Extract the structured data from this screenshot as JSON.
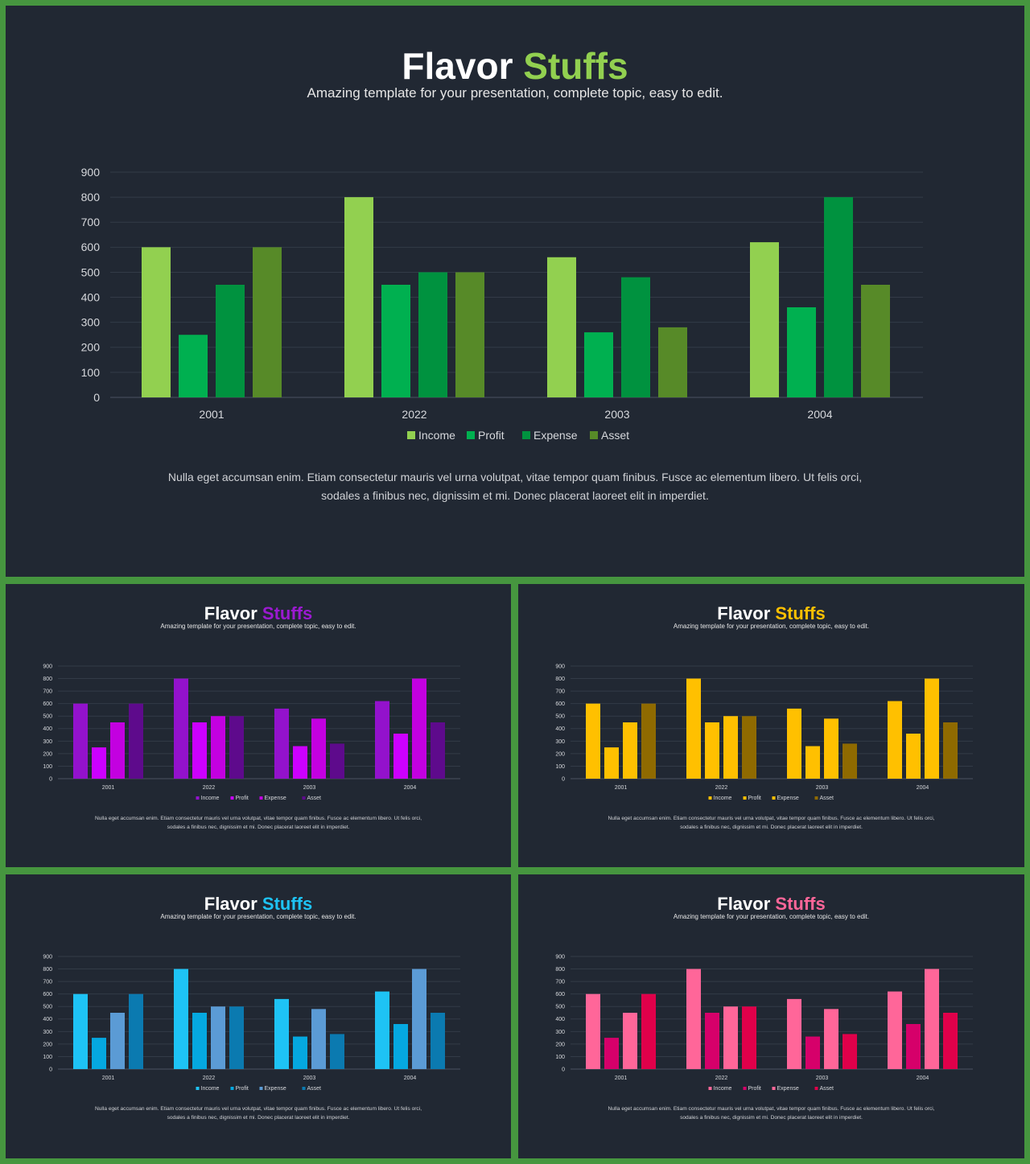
{
  "slides": [
    {
      "id": "main",
      "title_part1": "Flavor",
      "title_part2": "Stuffs",
      "subtitle": "Amazing template for your presentation, complete topic, easy to edit.",
      "body": "Nulla eget accumsan enim. Etiam consectetur mauris vel urna volutpat, vitae tempor quam finibus. Fusce ac elementum libero. Ut felis orci, sodales a finibus nec, dignissim et mi. Donec placerat laoreet elit in imperdiet.",
      "accent": "#92d050",
      "series_colors": [
        "#92d050",
        "#00b050",
        "#00923f",
        "#578a28"
      ]
    },
    {
      "id": "purple",
      "title_part1": "Flavor",
      "title_part2": "Stuffs",
      "subtitle": "Amazing template for your presentation, complete topic, easy to edit.",
      "body": "Nulla eget accumsan enim. Etiam consectetur mauris vel urna volutpat, vitae tempor quam finibus. Fusce ac elementum libero. Ut felis orci, sodales a finibus nec, dignissim et mi. Donec placerat laoreet elit in imperdiet.",
      "accent": "#9b1ad0",
      "series_colors": [
        "#9312cc",
        "#cc00ff",
        "#c300e0",
        "#5e0a8c"
      ]
    },
    {
      "id": "yellow",
      "title_part1": "Flavor",
      "title_part2": "Stuffs",
      "subtitle": "Amazing template for your presentation, complete topic, easy to edit.",
      "body": "Nulla eget accumsan enim. Etiam consectetur mauris vel urna volutpat, vitae tempor quam finibus. Fusce ac elementum libero. Ut felis orci, sodales a finibus nec, dignissim et mi. Donec placerat laoreet elit in imperdiet.",
      "accent": "#ffc000",
      "series_colors": [
        "#ffc000",
        "#ffc000",
        "#ffc000",
        "#8f6a00"
      ]
    },
    {
      "id": "blue",
      "title_part1": "Flavor",
      "title_part2": "Stuffs",
      "subtitle": "Amazing template for your presentation, complete topic, easy to edit.",
      "body": "Nulla eget accumsan enim. Etiam consectetur mauris vel urna volutpat, vitae tempor quam finibus. Fusce ac elementum libero. Ut felis orci, sodales a finibus nec, dignissim et mi. Donec placerat laoreet elit in imperdiet.",
      "accent": "#1ec3f5",
      "series_colors": [
        "#1ec3f5",
        "#05a8e0",
        "#5b9bd5",
        "#0b7ab0"
      ]
    },
    {
      "id": "pink",
      "title_part1": "Flavor",
      "title_part2": "Stuffs",
      "subtitle": "Amazing template for your presentation, complete topic, easy to edit.",
      "body": "Nulla eget accumsan enim. Etiam consectetur mauris vel urna volutpat, vitae tempor quam finibus. Fusce ac elementum libero. Ut felis orci, sodales a finibus nec, dignissim et mi. Donec placerat laoreet elit in imperdiet.",
      "accent": "#ff6699",
      "series_colors": [
        "#ff6699",
        "#d6006a",
        "#ff6699",
        "#e0004a"
      ]
    }
  ],
  "chart_data": {
    "type": "bar",
    "categories": [
      "2001",
      "2022",
      "2003",
      "2004"
    ],
    "series": [
      {
        "name": "Income",
        "values": [
          600,
          800,
          560,
          620
        ]
      },
      {
        "name": "Profit",
        "values": [
          250,
          450,
          260,
          360
        ]
      },
      {
        "name": "Expense",
        "values": [
          450,
          500,
          480,
          800
        ]
      },
      {
        "name": "Asset",
        "values": [
          600,
          500,
          280,
          450
        ]
      }
    ],
    "ylim": [
      0,
      900
    ],
    "yticks": [
      0,
      100,
      200,
      300,
      400,
      500,
      600,
      700,
      800,
      900
    ],
    "grid": true,
    "legend": "bottom"
  }
}
